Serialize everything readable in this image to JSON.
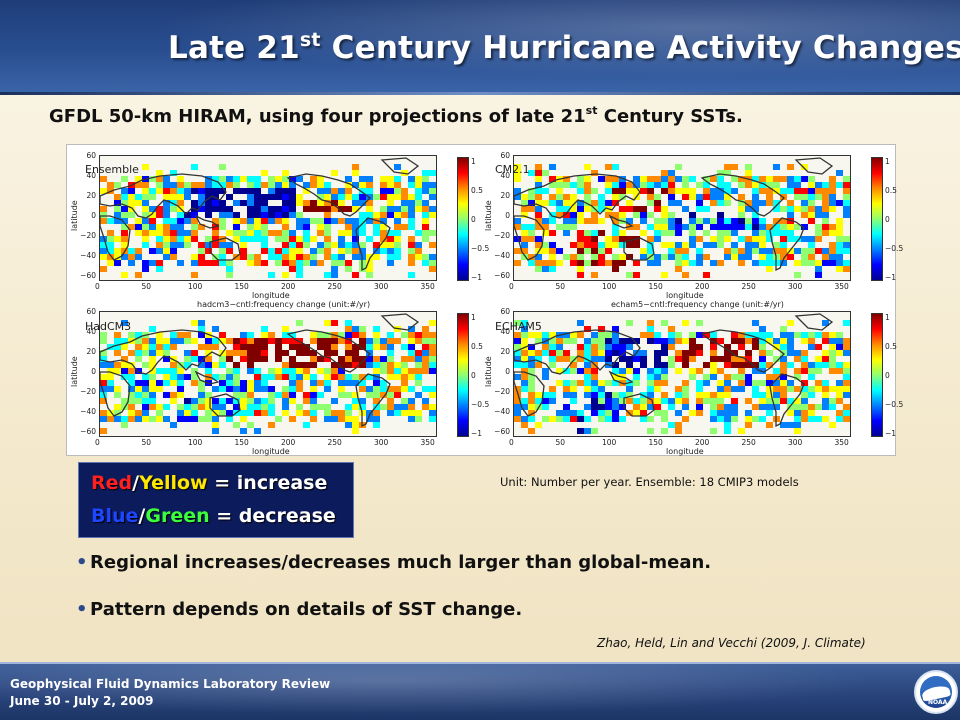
{
  "header": {
    "title_pre": "Late 21",
    "title_sup": "st",
    "title_post": " Century Hurricane Activity Changes"
  },
  "subtitle": {
    "pre": "GFDL 50-km HIRAM, using four projections of late 21",
    "sup": "st",
    "post": " Century SSTs."
  },
  "figure": {
    "axis": {
      "ylabel": "latitude",
      "xlabel": "longitude",
      "yticks": [
        "60",
        "40",
        "20",
        "0",
        "−20",
        "−40",
        "−60"
      ],
      "xticks": [
        "0",
        "50",
        "100",
        "150",
        "200",
        "250",
        "300",
        "350"
      ],
      "cticks": [
        "1",
        "0.5",
        "0",
        "−0.5",
        "−1"
      ]
    },
    "panels": [
      {
        "label": "Ensemble",
        "top_title": ""
      },
      {
        "label": "CM2.1",
        "top_title": ""
      },
      {
        "label": "HadCM3",
        "top_title": "hadcm3−cntl:frequency change (unit:#/yr)"
      },
      {
        "label": "ECHAM5",
        "top_title": "echam5−cntl:frequency change (unit:#/yr)"
      }
    ],
    "colorscale": [
      "#000090",
      "#0000ff",
      "#0080ff",
      "#00ffff",
      "#8fff70",
      "#ffff00",
      "#ff8a00",
      "#ff0000",
      "#800000"
    ]
  },
  "legend": {
    "red": "Red",
    "slash1": "/",
    "yellow": "Yellow",
    "increase": " = increase",
    "blue": "Blue",
    "slash2": "/",
    "green": "Green",
    "decrease": " = decrease"
  },
  "unit_note": "Unit:  Number per year.  Ensemble: 18 CMIP3 models",
  "bullets": [
    "Regional increases/decreases much larger than global-mean.",
    "Pattern depends on details of SST change."
  ],
  "citation": "Zhao, Held, Lin and Vecchi (2009, J. Climate)",
  "footer": {
    "line1": "Geophysical Fluid Dynamics Laboratory Review",
    "line2": "June 30 - July 2, 2009",
    "logo_text": "NOAA"
  },
  "colors": {
    "header_blue": "#294e90",
    "legend_bg": "#0c1b5c",
    "slide_bg": "#f6ecd2"
  }
}
